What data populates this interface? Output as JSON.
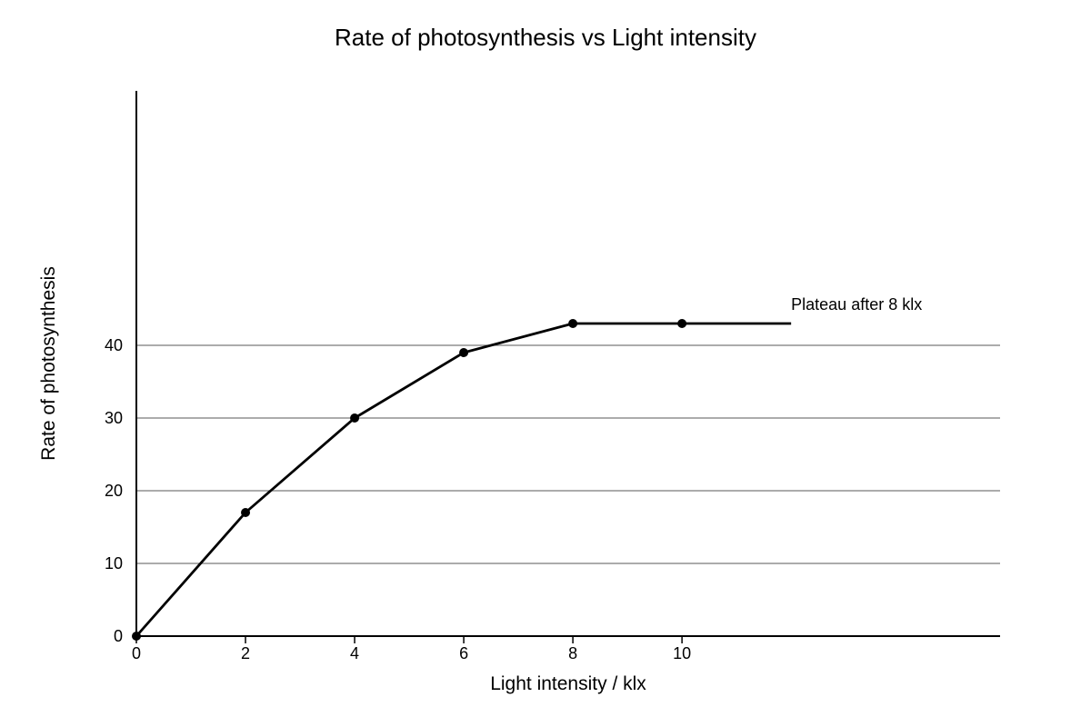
{
  "chart_data": {
    "type": "line",
    "title": "Rate of photosynthesis vs Light intensity",
    "xlabel": "Light intensity / klx",
    "ylabel": "Rate of photosynthesis",
    "xlim": [
      0,
      15.83
    ],
    "ylim": [
      0,
      75
    ],
    "x_ticks": [
      0,
      2,
      4,
      6,
      8,
      10
    ],
    "y_ticks": [
      0,
      10,
      20,
      30,
      40
    ],
    "grid_y": [
      10,
      20,
      30,
      40
    ],
    "grid": true,
    "series": [
      {
        "x": [
          0,
          2,
          4,
          6,
          8,
          10
        ],
        "values": [
          0,
          17,
          30,
          39,
          43,
          43
        ],
        "line_end_x": 12
      }
    ],
    "annotations": [
      {
        "text": "Plateau after 8 klx",
        "x": 12,
        "y": 43
      }
    ]
  }
}
